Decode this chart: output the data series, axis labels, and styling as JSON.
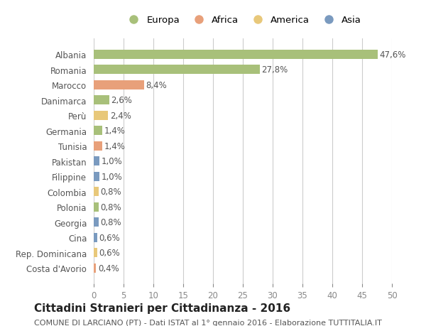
{
  "categories": [
    "Albania",
    "Romania",
    "Marocco",
    "Danimarca",
    "Perù",
    "Germania",
    "Tunisia",
    "Pakistan",
    "Filippine",
    "Colombia",
    "Polonia",
    "Georgia",
    "Cina",
    "Rep. Dominicana",
    "Costa d'Avorio"
  ],
  "values": [
    47.6,
    27.8,
    8.4,
    2.6,
    2.4,
    1.4,
    1.4,
    1.0,
    1.0,
    0.8,
    0.8,
    0.8,
    0.6,
    0.6,
    0.4
  ],
  "labels": [
    "47,6%",
    "27,8%",
    "8,4%",
    "2,6%",
    "2,4%",
    "1,4%",
    "1,4%",
    "1,0%",
    "1,0%",
    "0,8%",
    "0,8%",
    "0,8%",
    "0,6%",
    "0,6%",
    "0,4%"
  ],
  "colors": [
    "#a8c07a",
    "#a8c07a",
    "#e8a07a",
    "#a8c07a",
    "#e8c87a",
    "#a8c07a",
    "#e8a07a",
    "#7a9abf",
    "#7a9abf",
    "#e8c87a",
    "#a8c07a",
    "#7a9abf",
    "#7a9abf",
    "#e8c87a",
    "#e8a07a"
  ],
  "continent_colors": {
    "Europa": "#a8c07a",
    "Africa": "#e8a07a",
    "America": "#e8c87a",
    "Asia": "#7a9abf"
  },
  "legend_labels": [
    "Europa",
    "Africa",
    "America",
    "Asia"
  ],
  "xlim": [
    0,
    50
  ],
  "xticks": [
    0,
    5,
    10,
    15,
    20,
    25,
    30,
    35,
    40,
    45,
    50
  ],
  "title": "Cittadini Stranieri per Cittadinanza - 2016",
  "subtitle": "COMUNE DI LARCIANO (PT) - Dati ISTAT al 1° gennaio 2016 - Elaborazione TUTTITALIA.IT",
  "bg_color": "#ffffff",
  "grid_color": "#cccccc",
  "bar_height": 0.6,
  "label_fontsize": 8.5,
  "tick_fontsize": 8.5,
  "title_fontsize": 11,
  "subtitle_fontsize": 8.0
}
